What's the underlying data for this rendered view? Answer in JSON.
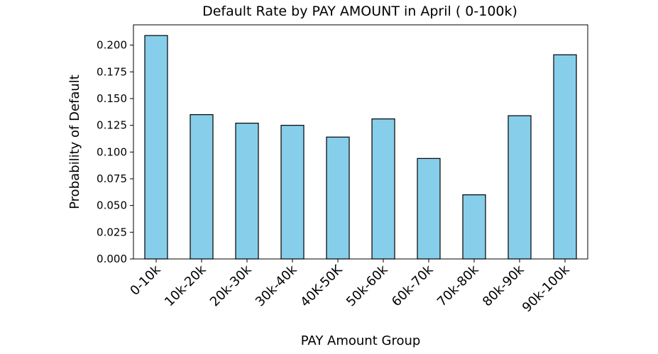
{
  "chart_data": {
    "type": "bar",
    "title": "Default Rate by PAY AMOUNT in April ( 0-100k)",
    "xlabel": "PAY Amount Group",
    "ylabel": "Probability of Default",
    "categories": [
      "0-10k",
      "10k-20k",
      "20k-30k",
      "30k-40k",
      "40K-50K",
      "50k-60k",
      "60k-70k",
      "70k-80k",
      "80k-90k",
      "90k-100k"
    ],
    "values": [
      0.209,
      0.135,
      0.127,
      0.125,
      0.114,
      0.131,
      0.094,
      0.06,
      0.134,
      0.191
    ],
    "ylim": [
      0,
      0.219
    ],
    "yticks": [
      0.0,
      0.025,
      0.05,
      0.075,
      0.1,
      0.125,
      0.15,
      0.175,
      0.2
    ],
    "ytick_labels": [
      "0.000",
      "0.025",
      "0.050",
      "0.075",
      "0.100",
      "0.125",
      "0.150",
      "0.175",
      "0.200"
    ],
    "bar_color": "#87CEEB",
    "edge_color": "#000000",
    "grid": false,
    "legend": "none"
  }
}
